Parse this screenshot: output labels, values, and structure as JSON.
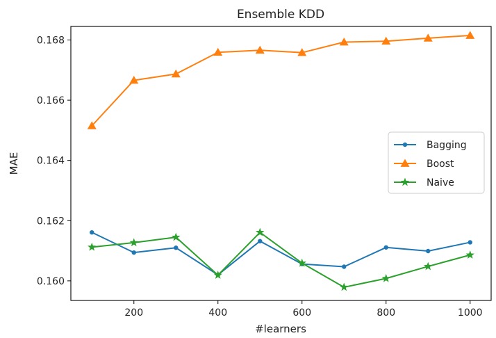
{
  "chart_data": {
    "type": "line",
    "title": "Ensemble KDD",
    "xlabel": "#learners",
    "ylabel": "MAE",
    "x": [
      100,
      200,
      300,
      400,
      500,
      600,
      700,
      800,
      900,
      1000
    ],
    "xlim": [
      50,
      1050
    ],
    "ylim": [
      0.15935,
      0.16845
    ],
    "xticks": [
      200,
      400,
      600,
      800,
      1000
    ],
    "xtick_labels": [
      "200",
      "400",
      "600",
      "800",
      "1000"
    ],
    "yticks": [
      0.16,
      0.162,
      0.164,
      0.166,
      0.168
    ],
    "ytick_labels": [
      "0.160",
      "0.162",
      "0.164",
      "0.166",
      "0.168"
    ],
    "grid": false,
    "legend_position": "center-right",
    "series": [
      {
        "name": "Bagging",
        "color": "#1f77b4",
        "marker": "dot",
        "values": [
          0.16161,
          0.16094,
          0.1611,
          0.1602,
          0.16132,
          0.16056,
          0.16047,
          0.16111,
          0.16099,
          0.16128
        ]
      },
      {
        "name": "Boost",
        "color": "#ff7f0e",
        "marker": "triangle",
        "values": [
          0.16515,
          0.16666,
          0.16687,
          0.16759,
          0.16766,
          0.16758,
          0.16793,
          0.16796,
          0.16806,
          0.16815
        ]
      },
      {
        "name": "Naive",
        "color": "#2ca02c",
        "marker": "star",
        "values": [
          0.16112,
          0.16127,
          0.16145,
          0.16019,
          0.16161,
          0.16059,
          0.15979,
          0.16008,
          0.16048,
          0.16086
        ]
      }
    ]
  }
}
